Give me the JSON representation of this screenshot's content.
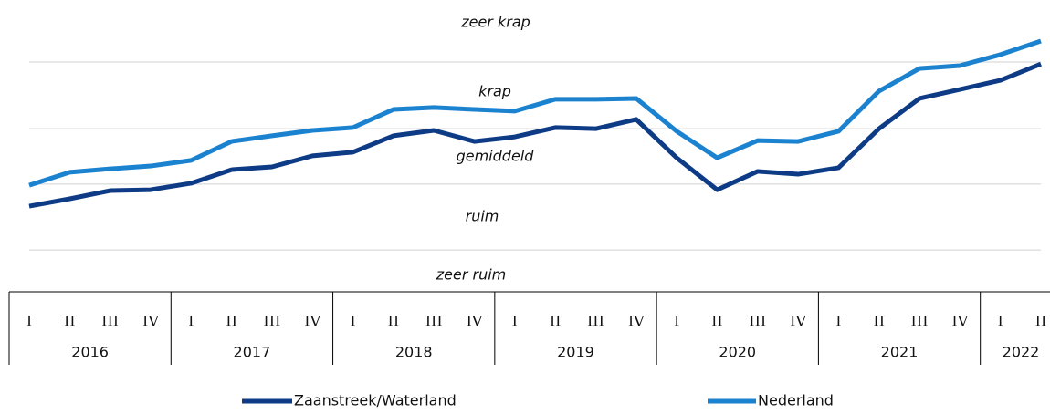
{
  "chart_data": {
    "type": "line",
    "categories": [
      "I",
      "II",
      "III",
      "IV",
      "I",
      "II",
      "III",
      "IV",
      "I",
      "II",
      "III",
      "IV",
      "I",
      "II",
      "III",
      "IV",
      "I",
      "II",
      "III",
      "IV",
      "I",
      "II",
      "III",
      "IV",
      "I",
      "II"
    ],
    "years": [
      "2016",
      "2017",
      "2018",
      "2019",
      "2020",
      "2021",
      "2022"
    ],
    "series": [
      {
        "name": "Zaanstreek/Waterland",
        "color": "#0e3b85",
        "values": [
          30.3,
          32.9,
          35.8,
          36.1,
          38.4,
          43.2,
          44.2,
          48.1,
          49.4,
          55.2,
          57.1,
          53.2,
          54.8,
          58.1,
          57.7,
          61.0,
          47.4,
          36.1,
          42.6,
          41.6,
          43.9,
          57.7,
          68.4,
          71.6,
          74.8,
          80.6
        ]
      },
      {
        "name": "Nederland",
        "color": "#1b82d0",
        "values": [
          37.7,
          42.3,
          43.5,
          44.5,
          46.5,
          53.2,
          55.2,
          57.1,
          58.1,
          64.5,
          65.2,
          64.5,
          63.9,
          68.1,
          68.1,
          68.4,
          56.8,
          47.4,
          53.5,
          53.2,
          56.8,
          71.0,
          79.0,
          80.0,
          83.9,
          88.7
        ]
      }
    ],
    "ylim": [
      0,
      100
    ],
    "grid_lines": [
      81.3,
      57.7,
      38.1,
      14.8
    ],
    "bands": [
      "zeer krap",
      "krap",
      "gemiddeld",
      "ruim",
      "zeer ruim"
    ]
  }
}
